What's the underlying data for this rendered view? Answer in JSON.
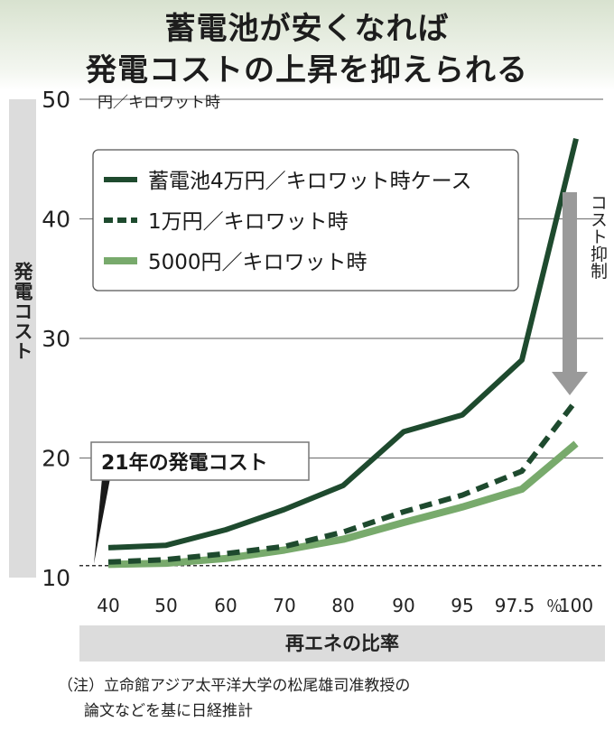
{
  "title": {
    "line1": "蓄電池が安くなれば",
    "line2": "発電コストの上昇を抑えられる"
  },
  "note": {
    "line1": "（注）立命館アジア太平洋大学の松尾雄司准教授の",
    "line2": "論文などを基に日経推計"
  },
  "colors": {
    "dark_green": "#1e4a2e",
    "light_green": "#78aa6c",
    "arrow_gray": "#9a9a9a",
    "band_gray": "#dcdcdc"
  },
  "chart_data": {
    "type": "line",
    "ylabel": "発電コスト",
    "xlabel": "再エネの比率",
    "y_unit": "円／キロワット時",
    "x_unit": "％",
    "ylim": [
      10,
      50
    ],
    "yticks": [
      10,
      20,
      30,
      40,
      50
    ],
    "categories": [
      "40",
      "50",
      "60",
      "70",
      "80",
      "90",
      "95",
      "97.5",
      "100"
    ],
    "series": [
      {
        "name": "蓄電池4万円／キロワット時ケース",
        "style": "solid",
        "color": "#1e4a2e",
        "values": [
          12.5,
          12.7,
          14.0,
          15.7,
          17.7,
          22.2,
          23.6,
          28.2,
          46.7
        ]
      },
      {
        "name": "1万円／キロワット時",
        "style": "dashed",
        "color": "#1e4a2e",
        "values": [
          11.3,
          11.5,
          12.0,
          12.6,
          13.8,
          15.5,
          16.9,
          18.9,
          24.8
        ]
      },
      {
        "name": "5000円／キロワット時",
        "style": "solid",
        "color": "#78aa6c",
        "values": [
          11.1,
          11.2,
          11.6,
          12.3,
          13.2,
          14.6,
          15.9,
          17.4,
          21.2
        ]
      }
    ],
    "reference_line": {
      "label": "21年の発電コスト",
      "value": 11.0
    },
    "annotation": "コスト抑制",
    "grid": true,
    "legend_position": "top-left"
  }
}
